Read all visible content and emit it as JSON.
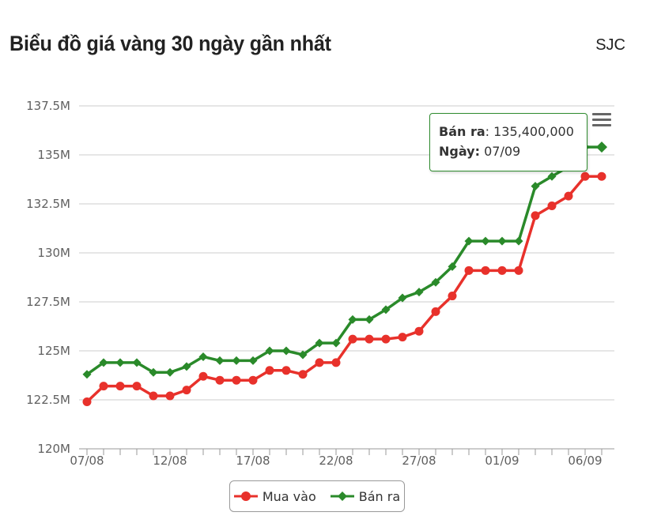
{
  "header": {
    "title": "Biểu đồ giá vàng 30 ngày gần nhất",
    "brand": "SJC"
  },
  "tooltip": {
    "series_label": "Bán ra",
    "value": "135,400,000",
    "date_label": "Ngày:",
    "date": "07/09",
    "border_color": "#2e8b2e"
  },
  "menu": {
    "icon": "hamburger-menu-icon"
  },
  "colors": {
    "buy": "#e8312b",
    "sell": "#2a8a2a",
    "grid": "#cccccc"
  },
  "chart_data": {
    "type": "line",
    "x": [
      "07/08",
      "08/08",
      "09/08",
      "10/08",
      "11/08",
      "12/08",
      "13/08",
      "14/08",
      "15/08",
      "16/08",
      "17/08",
      "18/08",
      "19/08",
      "20/08",
      "21/08",
      "22/08",
      "23/08",
      "24/08",
      "25/08",
      "26/08",
      "27/08",
      "28/08",
      "29/08",
      "30/08",
      "31/08",
      "01/09",
      "02/09",
      "03/09",
      "04/09",
      "05/09",
      "06/09",
      "07/09"
    ],
    "x_tick_labels": [
      "07/08",
      "12/08",
      "17/08",
      "22/08",
      "27/08",
      "01/09",
      "06/09"
    ],
    "series": [
      {
        "name": "Mua vào",
        "color": "#e8312b",
        "marker": "circle",
        "values": [
          122.4,
          123.2,
          123.2,
          123.2,
          122.7,
          122.7,
          123.0,
          123.7,
          123.5,
          123.5,
          123.5,
          124.0,
          124.0,
          123.8,
          124.4,
          124.4,
          125.6,
          125.6,
          125.6,
          125.7,
          126.0,
          127.0,
          127.8,
          129.1,
          129.1,
          129.1,
          129.1,
          131.9,
          132.4,
          132.9,
          133.9,
          133.9
        ]
      },
      {
        "name": "Bán ra",
        "color": "#2a8a2a",
        "marker": "diamond",
        "values": [
          123.8,
          124.4,
          124.4,
          124.4,
          123.9,
          123.9,
          124.2,
          124.7,
          124.5,
          124.5,
          124.5,
          125.0,
          125.0,
          124.8,
          125.4,
          125.4,
          126.6,
          126.6,
          127.1,
          127.7,
          128.0,
          128.5,
          129.3,
          130.6,
          130.6,
          130.6,
          130.6,
          133.4,
          133.9,
          134.4,
          135.4,
          135.4
        ]
      }
    ],
    "y_unit": "M",
    "ylim": [
      120,
      137.5
    ],
    "y_ticks": [
      "120M",
      "122.5M",
      "125M",
      "127.5M",
      "130M",
      "132.5M",
      "135M",
      "137.5M"
    ],
    "y_tick_values": [
      120,
      122.5,
      125,
      127.5,
      130,
      132.5,
      135,
      137.5
    ],
    "grid": true,
    "legend_position": "bottom-center"
  }
}
